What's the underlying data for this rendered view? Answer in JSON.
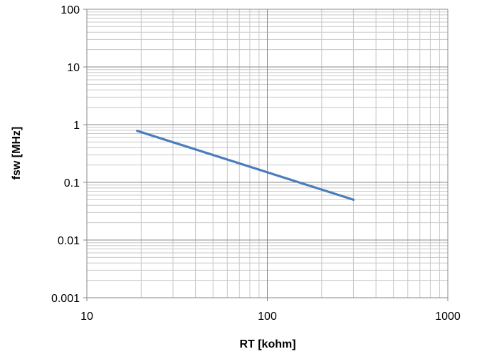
{
  "chart_data": {
    "type": "line",
    "xlabel": "RT [kohm]",
    "ylabel": "fsw [MHz]",
    "x_scale": "log",
    "y_scale": "log",
    "xlim": [
      10,
      1000
    ],
    "ylim": [
      0.001,
      100
    ],
    "x_ticks": [
      "10",
      "100",
      "1000"
    ],
    "y_ticks": [
      "100",
      "10",
      "1",
      "0.1",
      "0.01",
      "0.001"
    ],
    "grid": true,
    "series": [
      {
        "x": [
          19,
          300
        ],
        "y": [
          0.78,
          0.05
        ],
        "color": "#4a7ebb"
      }
    ]
  }
}
